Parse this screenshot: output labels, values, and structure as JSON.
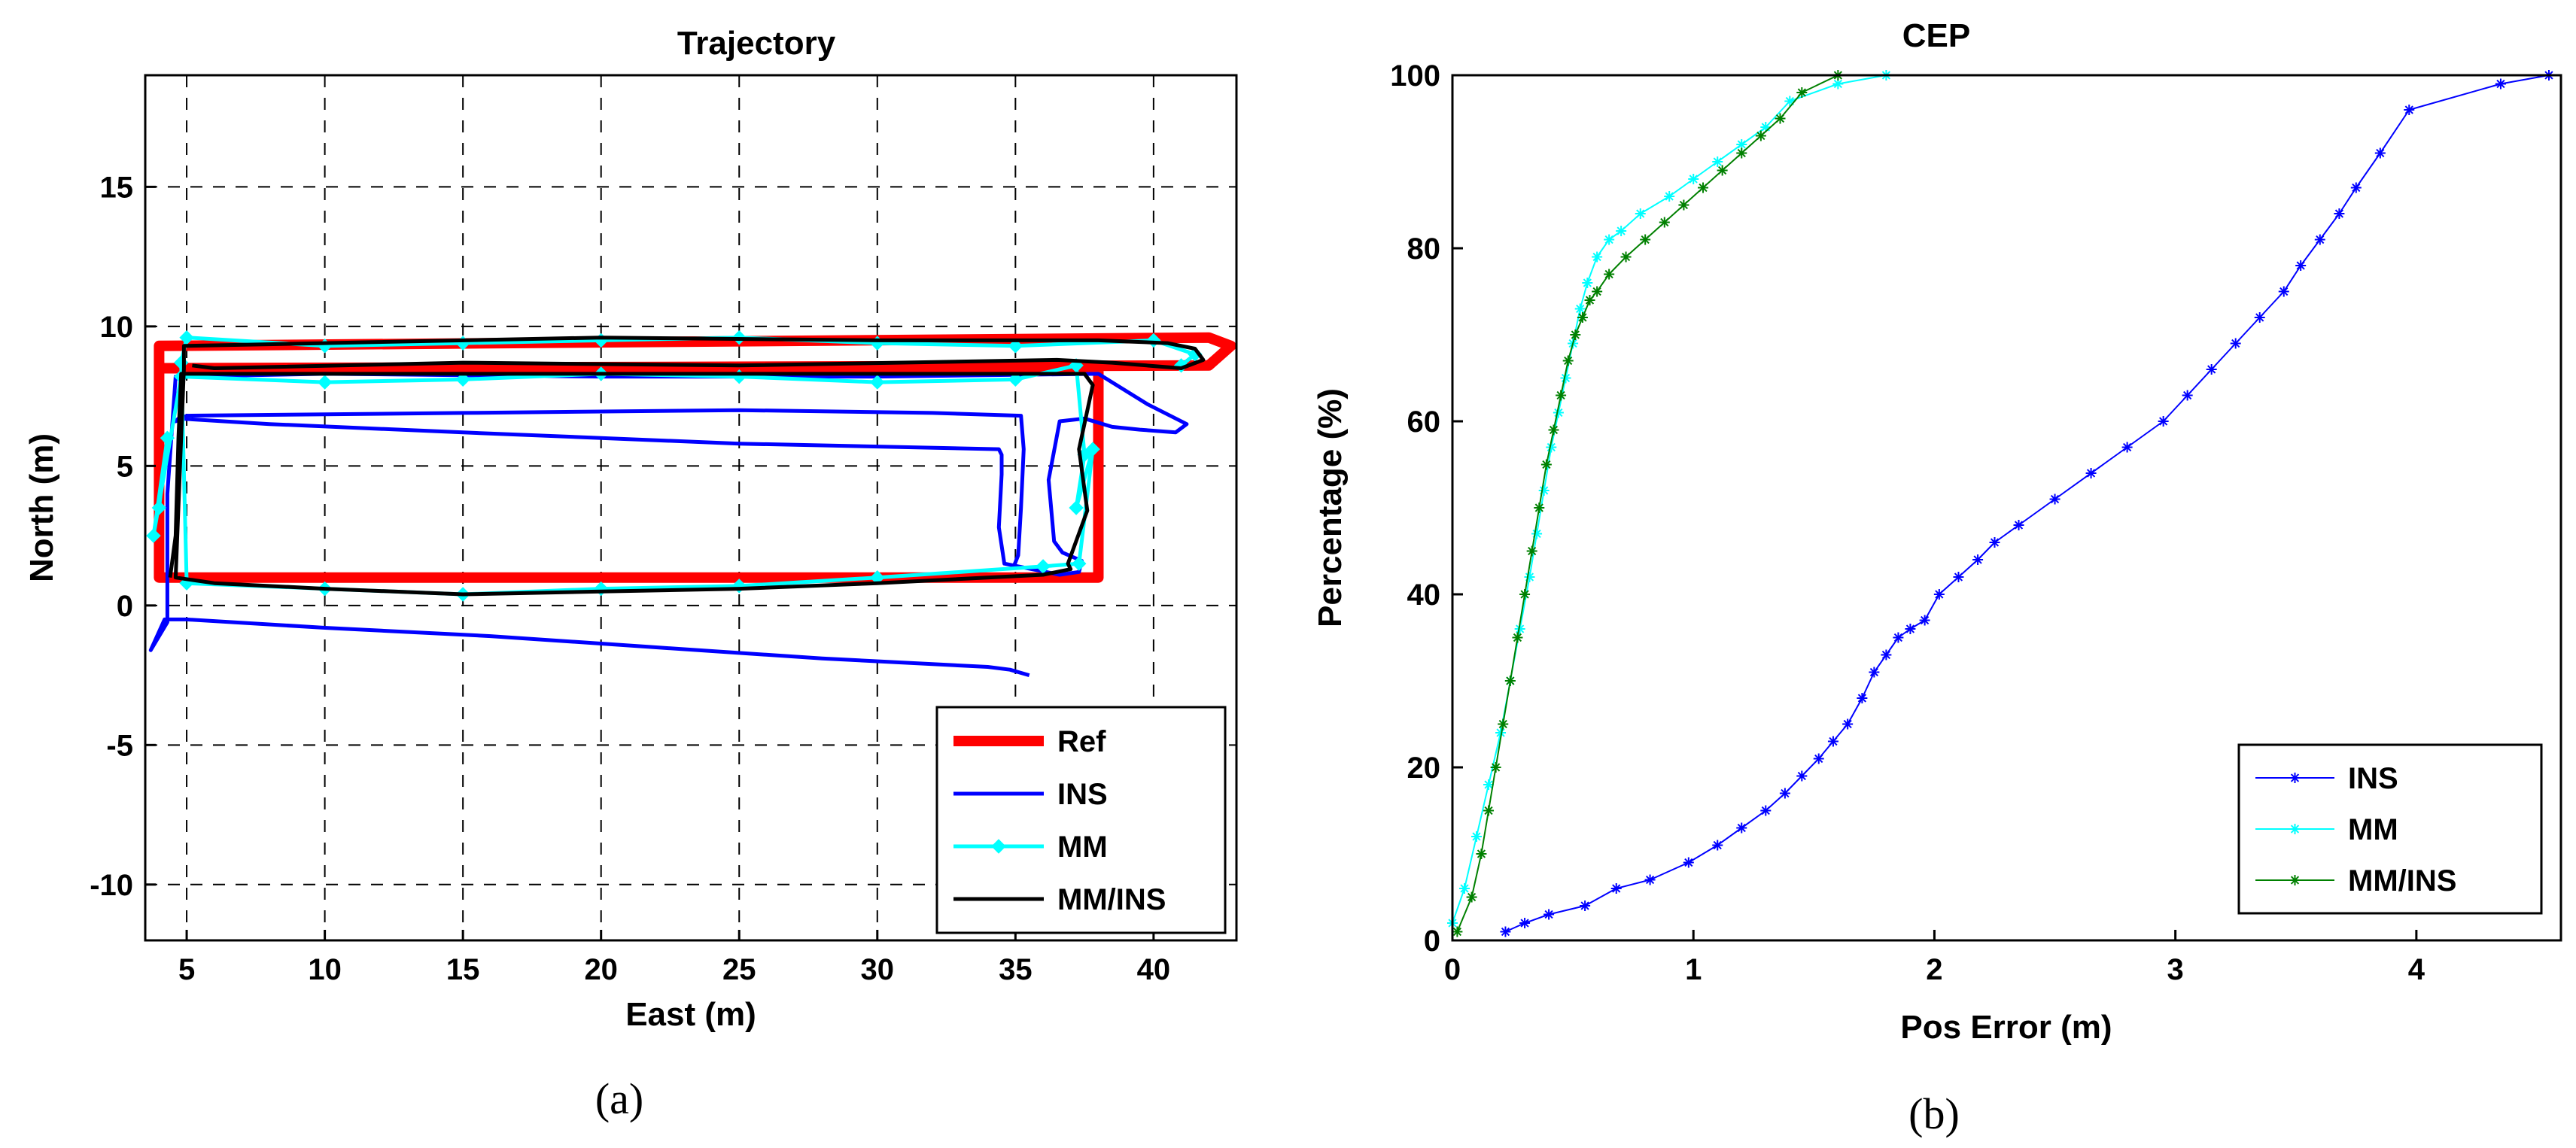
{
  "chart_data": [
    {
      "type": "line",
      "title": "Trajectory",
      "xlabel": "East (m)",
      "ylabel": "North (m)",
      "xlim": [
        3.5,
        43
      ],
      "ylim": [
        -12,
        19
      ],
      "xticks": [
        5,
        10,
        15,
        20,
        25,
        30,
        35,
        40
      ],
      "yticks": [
        -10,
        -5,
        0,
        5,
        10,
        15
      ],
      "grid": true,
      "legend_position": "bottom-right",
      "panel_label": "(a)",
      "series": [
        {
          "name": "Ref",
          "color": "#ff0000",
          "marker": "none",
          "x": [
            4,
            4,
            38,
            38,
            4,
            4,
            42,
            42.8,
            42,
            4
          ],
          "y": [
            8.5,
            1,
            1,
            8.5,
            8.5,
            9.3,
            9.6,
            9.3,
            8.6,
            8.5
          ]
        },
        {
          "name": "INS",
          "color": "#0000ff",
          "marker": "none",
          "x": [
            35.5,
            34,
            4,
            3.7,
            4.2,
            4.3,
            38,
            41.2,
            40,
            38.5,
            34.5,
            34.6,
            4.5,
            4.6,
            36,
            36.2,
            36.3,
            35.2
          ],
          "y": [
            -2.5,
            -2.2,
            -0.5,
            -1.5,
            0,
            8.2,
            8.3,
            6.4,
            6.2,
            6.5,
            5.2,
            5.6,
            6.8,
            6.5,
            6.8,
            2,
            1.5,
            1.2
          ],
          "path_x": [
            35.5,
            34.8,
            34,
            28,
            22,
            16,
            10,
            5,
            4.2,
            3.7,
            4.3,
            4.3,
            4.6,
            10,
            20,
            30,
            38,
            39.8,
            41.2,
            40.8,
            39.5,
            38.5,
            37.5,
            36.6,
            36.2,
            36.4,
            36.7,
            37.4,
            37.3,
            36.6,
            34.6,
            34.4,
            34.5,
            34.5,
            34.4,
            25,
            15,
            8,
            4.7,
            4.6,
            5,
            15,
            25,
            32,
            35.2,
            35.3,
            35.2,
            35.1,
            34.9
          ],
          "path_y": [
            -2.5,
            -2.3,
            -2.2,
            -1.9,
            -1.5,
            -1.1,
            -0.8,
            -0.5,
            -0.5,
            -1.6,
            -0.6,
            4,
            8.2,
            8.3,
            8.2,
            8.2,
            8.3,
            7.2,
            6.5,
            6.2,
            6.3,
            6.4,
            6.7,
            6.6,
            4.5,
            2.3,
            1.9,
            1.6,
            1.2,
            1.1,
            1.5,
            2.8,
            4.7,
            5.4,
            5.6,
            5.8,
            6.2,
            6.5,
            6.7,
            6.6,
            6.8,
            6.9,
            7,
            6.9,
            6.8,
            5.6,
            3.5,
            1.8,
            1.3
          ]
        },
        {
          "name": "MM",
          "color": "#00ffff",
          "marker": "diamond",
          "x": [
            4,
            4.3,
            3.8,
            4.8,
            10,
            15,
            20,
            25,
            30,
            35,
            37.2,
            37.5,
            37.2,
            37.8,
            37.3,
            36,
            30,
            25,
            20,
            15,
            10,
            5,
            4.8,
            5,
            10,
            15,
            20,
            25,
            30,
            35,
            40,
            41.5,
            41
          ],
          "y": [
            3.5,
            6,
            2.5,
            8.2,
            8,
            8.1,
            8.3,
            8.2,
            8,
            8.1,
            8.6,
            5.4,
            3.5,
            5.6,
            1.5,
            1.4,
            1,
            0.7,
            0.6,
            0.4,
            0.6,
            0.8,
            8.7,
            9.6,
            9.3,
            9.4,
            9.5,
            9.6,
            9.4,
            9.3,
            9.5,
            9,
            8.6
          ]
        },
        {
          "name": "MM/INS",
          "color": "#000000",
          "marker": "none",
          "x": [
            4.4,
            4.6,
            4.7,
            4.8,
            37.5,
            37.8,
            37.3,
            37.6,
            36.9,
            37,
            36,
            30,
            25,
            20,
            15,
            10,
            6,
            4.6,
            4.8,
            4.9,
            4.9,
            10,
            20,
            30,
            35,
            38,
            40.5,
            41.5,
            41.8,
            41,
            38.5,
            36.5,
            25,
            15,
            6,
            5.2
          ],
          "y": [
            1,
            2.5,
            6,
            8.3,
            8.3,
            7.9,
            5.6,
            3.4,
            1.5,
            1.3,
            1.1,
            0.8,
            0.6,
            0.5,
            0.4,
            0.6,
            0.8,
            1,
            6,
            8.5,
            9.3,
            9.4,
            9.6,
            9.5,
            9.5,
            9.5,
            9.4,
            9.2,
            8.8,
            8.5,
            8.7,
            8.8,
            8.6,
            8.7,
            8.5,
            8.6
          ]
        }
      ]
    },
    {
      "type": "line",
      "title": "CEP",
      "xlabel": "Pos Error (m)",
      "ylabel": "Percentage (%)",
      "xlim": [
        0,
        4.6
      ],
      "ylim": [
        0,
        100
      ],
      "xticks": [
        0,
        1,
        2,
        3,
        4
      ],
      "yticks": [
        0,
        20,
        40,
        60,
        80,
        100
      ],
      "grid": false,
      "legend_position": "bottom-right",
      "panel_label": "(b)",
      "series": [
        {
          "name": "INS",
          "color": "#0000ff",
          "marker": "asterisk",
          "x": [
            0.22,
            0.3,
            0.4,
            0.55,
            0.68,
            0.82,
            0.98,
            1.1,
            1.2,
            1.3,
            1.38,
            1.45,
            1.52,
            1.58,
            1.64,
            1.7,
            1.75,
            1.8,
            1.85,
            1.9,
            1.96,
            2.02,
            2.1,
            2.18,
            2.25,
            2.35,
            2.5,
            2.65,
            2.8,
            2.95,
            3.05,
            3.15,
            3.25,
            3.35,
            3.45,
            3.52,
            3.6,
            3.68,
            3.75,
            3.85,
            3.97,
            4.35,
            4.55
          ],
          "y": [
            1,
            2,
            3,
            4,
            6,
            7,
            9,
            11,
            13,
            15,
            17,
            19,
            21,
            23,
            25,
            28,
            31,
            33,
            35,
            36,
            37,
            40,
            42,
            44,
            46,
            48,
            51,
            54,
            57,
            60,
            63,
            66,
            69,
            72,
            75,
            78,
            81,
            84,
            87,
            91,
            96,
            99,
            100
          ]
        },
        {
          "name": "MM",
          "color": "#00ffff",
          "marker": "asterisk",
          "x": [
            0.0,
            0.05,
            0.1,
            0.15,
            0.2,
            0.24,
            0.28,
            0.32,
            0.35,
            0.38,
            0.41,
            0.44,
            0.47,
            0.5,
            0.53,
            0.56,
            0.6,
            0.65,
            0.7,
            0.78,
            0.9,
            1.0,
            1.1,
            1.2,
            1.3,
            1.4,
            1.6,
            1.8
          ],
          "y": [
            2,
            6,
            12,
            18,
            24,
            30,
            36,
            42,
            47,
            52,
            57,
            61,
            65,
            69,
            73,
            76,
            79,
            81,
            82,
            84,
            86,
            88,
            90,
            92,
            94,
            97,
            99,
            100
          ]
        },
        {
          "name": "MM/INS",
          "color": "#008000",
          "marker": "asterisk",
          "x": [
            0.02,
            0.08,
            0.12,
            0.15,
            0.18,
            0.21,
            0.24,
            0.27,
            0.3,
            0.33,
            0.36,
            0.39,
            0.42,
            0.45,
            0.48,
            0.51,
            0.54,
            0.57,
            0.6,
            0.65,
            0.72,
            0.8,
            0.88,
            0.96,
            1.04,
            1.12,
            1.2,
            1.28,
            1.36,
            1.45,
            1.6
          ],
          "y": [
            1,
            5,
            10,
            15,
            20,
            25,
            30,
            35,
            40,
            45,
            50,
            55,
            59,
            63,
            67,
            70,
            72,
            74,
            75,
            77,
            79,
            81,
            83,
            85,
            87,
            89,
            91,
            93,
            95,
            98,
            100
          ]
        }
      ]
    }
  ]
}
